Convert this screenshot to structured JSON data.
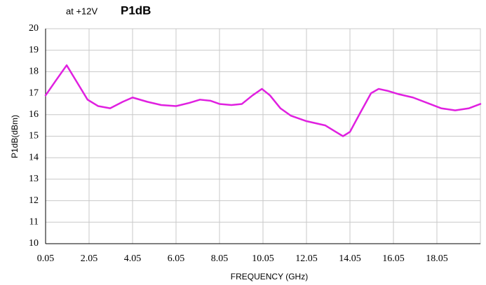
{
  "chart_data": {
    "type": "line",
    "subtitle": "at +12V",
    "title": "P1dB",
    "x_label": "FREQUENCY (GHz)",
    "y_label": "P1dB(dBm)",
    "x": [
      0.05,
      0.53,
      1.02,
      1.5,
      1.98,
      2.47,
      3.02,
      3.6,
      4.05,
      4.73,
      5.37,
      6.05,
      6.66,
      7.15,
      7.63,
      8.05,
      8.6,
      9.08,
      9.57,
      10.0,
      10.37,
      10.85,
      11.34,
      12.05,
      12.92,
      13.4,
      13.73,
      14.05,
      14.53,
      15.02,
      15.37,
      15.82,
      16.31,
      16.95,
      17.6,
      18.24,
      18.89,
      19.53,
      20.05
    ],
    "series": [
      {
        "name": "P1dB",
        "color": "#e020e0",
        "values": [
          16.9,
          17.6,
          18.3,
          17.5,
          16.7,
          16.4,
          16.3,
          16.6,
          16.8,
          16.6,
          16.45,
          16.4,
          16.55,
          16.7,
          16.65,
          16.5,
          16.45,
          16.5,
          16.9,
          17.2,
          16.9,
          16.3,
          15.95,
          15.7,
          15.5,
          15.2,
          15.0,
          15.2,
          16.1,
          17.0,
          17.2,
          17.1,
          16.95,
          16.8,
          16.55,
          16.3,
          16.2,
          16.3,
          16.5
        ]
      }
    ],
    "xlim": [
      0.05,
      20.05
    ],
    "xticks": [
      0.05,
      2.05,
      4.05,
      6.05,
      8.05,
      10.05,
      12.05,
      14.05,
      16.05,
      18.05
    ],
    "ylim": [
      10,
      20
    ],
    "yticks": [
      10,
      11,
      12,
      13,
      14,
      15,
      16,
      17,
      18,
      19,
      20
    ],
    "grid": true
  }
}
